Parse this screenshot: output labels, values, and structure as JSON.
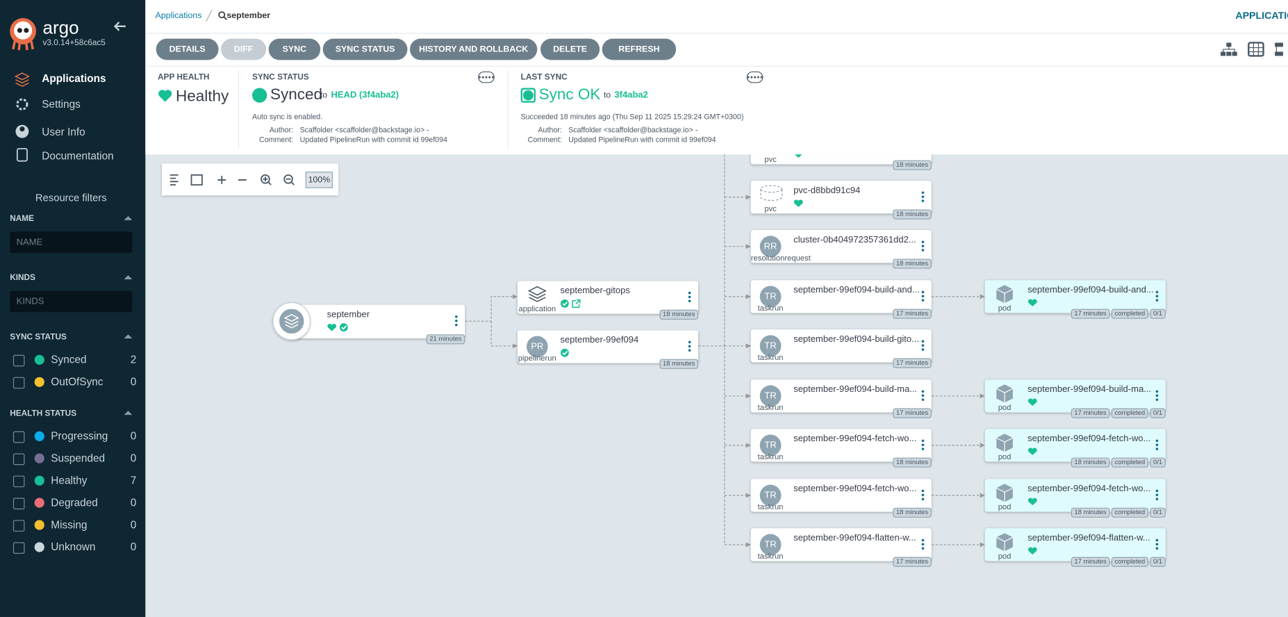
{
  "sidebar": {
    "brand": "argo",
    "version": "v3.0.14+58c6ac5",
    "nav": [
      "Applications",
      "Settings",
      "User Info",
      "Documentation"
    ],
    "filters_title": "Resource filters",
    "name_filter": {
      "label": "NAME",
      "placeholder": "NAME"
    },
    "kinds_filter": {
      "label": "KINDS",
      "placeholder": "KINDS"
    },
    "sync_status": {
      "label": "SYNC STATUS",
      "items": [
        {
          "name": "Synced",
          "count": 2
        },
        {
          "name": "OutOfSync",
          "count": 0
        }
      ]
    },
    "health_status": {
      "label": "HEALTH STATUS",
      "items": [
        {
          "name": "Progressing",
          "count": 0
        },
        {
          "name": "Suspended",
          "count": 0
        },
        {
          "name": "Healthy",
          "count": 7
        },
        {
          "name": "Degraded",
          "count": 0
        },
        {
          "name": "Missing",
          "count": 0
        },
        {
          "name": "Unknown",
          "count": 0
        }
      ]
    }
  },
  "header": {
    "breadcrumb": "Applications",
    "current": "september",
    "right": "APPLICATIO"
  },
  "toolbar": [
    "DETAILS",
    "DIFF",
    "SYNC",
    "SYNC STATUS",
    "HISTORY AND ROLLBACK",
    "DELETE",
    "REFRESH"
  ],
  "status": {
    "app_health": {
      "label": "APP HEALTH",
      "value": "Healthy"
    },
    "sync_status": {
      "label": "SYNC STATUS",
      "value": "Synced",
      "to": "to",
      "revision": "HEAD (3f4aba2)",
      "note": "Auto sync is enabled.",
      "author_label": "Author:",
      "author": "Scaffolder <scaffolder@backstage.io> -",
      "comment_label": "Comment:",
      "comment": "Updated PipelineRun with commit id 99ef094"
    },
    "last_sync": {
      "label": "LAST SYNC",
      "value": "Sync OK",
      "to": "to",
      "revision": "3f4aba2",
      "note": "Succeeded 18 minutes ago (Thu Sep 11 2025 15:29:24 GMT+0300)",
      "author_label": "Author:",
      "author": "Scaffolder <scaffolder@backstage.io> -",
      "comment_label": "Comment:",
      "comment": "Updated PipelineRun with commit id 99ef094"
    }
  },
  "zoom": "100%",
  "nodes": [
    {
      "name": "september",
      "age": "21 minutes"
    },
    {
      "name": "september-gitops",
      "kind": "application",
      "age": "18 minutes"
    },
    {
      "name": "september-99ef094",
      "kind": "pipelinerun",
      "icon": "PR",
      "age": "18 minutes"
    },
    {
      "kind": "pvc",
      "age": "18 minutes"
    },
    {
      "name": "pvc-d8bbd91c94",
      "kind": "pvc",
      "age": "18 minutes"
    },
    {
      "name": "cluster-0b404972357361dd2...",
      "kind": "resolutionrequest",
      "icon": "RR",
      "age": "18 minutes"
    },
    {
      "name": "september-99ef094-build-and...",
      "kind": "taskrun",
      "icon": "TR",
      "age": "17 minutes"
    },
    {
      "name": "september-99ef094-build-gito...",
      "kind": "taskrun",
      "icon": "TR",
      "age": "17 minutes"
    },
    {
      "name": "september-99ef094-build-ma...",
      "kind": "taskrun",
      "icon": "TR",
      "age": "17 minutes"
    },
    {
      "name": "september-99ef094-fetch-wo...",
      "kind": "taskrun",
      "icon": "TR",
      "age": "18 minutes"
    },
    {
      "name": "september-99ef094-fetch-wo...",
      "kind": "taskrun",
      "icon": "TR",
      "age": "18 minutes"
    },
    {
      "name": "september-99ef094-flatten-w...",
      "kind": "taskrun",
      "icon": "TR",
      "age": "17 minutes"
    },
    {
      "name": "september-99ef094-build-and...",
      "kind": "pod",
      "age": "17 minutes",
      "tags": [
        "completed",
        "0/1"
      ]
    },
    {
      "name": "september-99ef094-build-ma...",
      "kind": "pod",
      "age": "17 minutes",
      "tags": [
        "completed",
        "0/1"
      ]
    },
    {
      "name": "september-99ef094-fetch-wo...",
      "kind": "pod",
      "age": "18 minutes",
      "tags": [
        "completed",
        "0/1"
      ]
    },
    {
      "name": "september-99ef094-fetch-wo...",
      "kind": "pod",
      "age": "18 minutes",
      "tags": [
        "completed",
        "0/1"
      ]
    },
    {
      "name": "september-99ef094-flatten-w...",
      "kind": "pod",
      "age": "17 minutes",
      "tags": [
        "completed",
        "0/1"
      ]
    }
  ]
}
